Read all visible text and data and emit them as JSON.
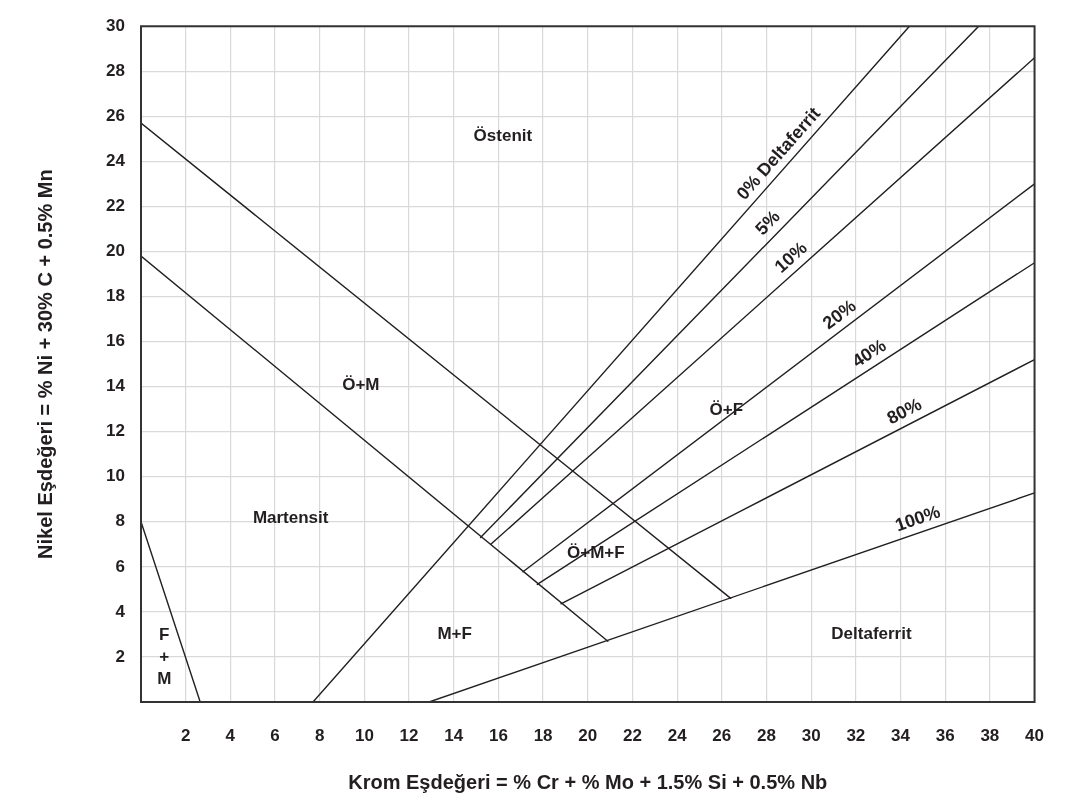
{
  "chart_data": {
    "type": "line",
    "xlabel": "Krom Eşdeğeri = % Cr + % Mo + 1.5% Si + 0.5% Nb",
    "ylabel": "Nikel Eşdeğeri = % Ni + 30% C + 0.5% Mn",
    "xlim": [
      0,
      40
    ],
    "ylim": [
      0,
      30
    ],
    "xticks": [
      2,
      4,
      6,
      8,
      10,
      12,
      14,
      16,
      18,
      20,
      22,
      24,
      26,
      28,
      30,
      32,
      34,
      36,
      38,
      40
    ],
    "yticks": [
      2,
      4,
      6,
      8,
      10,
      12,
      14,
      16,
      18,
      20,
      22,
      24,
      26,
      28,
      30
    ],
    "grid": true,
    "legend": false,
    "marker": "none",
    "line_style": "solid",
    "series": [
      {
        "color": "#231f20",
        "x": [
          0,
          26.4
        ],
        "values": [
          25.7,
          4.6
        ]
      },
      {
        "color": "#231f20",
        "x": [
          0,
          20.9
        ],
        "values": [
          19.8,
          2.7
        ]
      },
      {
        "color": "#231f20",
        "x": [
          0,
          2.65
        ],
        "values": [
          8.0,
          0
        ]
      },
      {
        "color": "#231f20",
        "x": [
          7.7,
          34.4
        ],
        "values": [
          0,
          30
        ]
      },
      {
        "color": "#231f20",
        "x": [
          15.2,
          37.5
        ],
        "values": [
          7.3,
          30
        ]
      },
      {
        "color": "#231f20",
        "x": [
          15.66,
          40
        ],
        "values": [
          7.0,
          28.6
        ]
      },
      {
        "color": "#231f20",
        "x": [
          17.1,
          40
        ],
        "values": [
          5.78,
          23.0
        ]
      },
      {
        "color": "#231f20",
        "x": [
          17.74,
          40
        ],
        "values": [
          5.22,
          19.5
        ]
      },
      {
        "color": "#231f20",
        "x": [
          18.8,
          40
        ],
        "values": [
          4.36,
          15.2
        ]
      },
      {
        "color": "#231f20",
        "x": [
          12.9,
          40
        ],
        "values": [
          0,
          9.28
        ]
      }
    ],
    "annotations": [
      {
        "text": "0% Deltaferrit",
        "x": 29.0,
        "y": 23.93
      },
      {
        "text": "5%",
        "x": 28.5,
        "y": 20.84
      },
      {
        "text": "10%",
        "x": 29.5,
        "y": 19.28
      },
      {
        "text": "20%",
        "x": 31.64,
        "y": 16.71
      },
      {
        "text": "40%",
        "x": 32.93,
        "y": 14.96
      },
      {
        "text": "80%",
        "x": 34.45,
        "y": 12.36
      },
      {
        "text": "100%",
        "x": 34.97,
        "y": 7.56
      },
      "Östenit",
      "Ö+M",
      "Martensit",
      "Ö+F",
      "Ö+M+F",
      "M+F",
      "Deltaferrit",
      "F\n+\nM"
    ]
  }
}
